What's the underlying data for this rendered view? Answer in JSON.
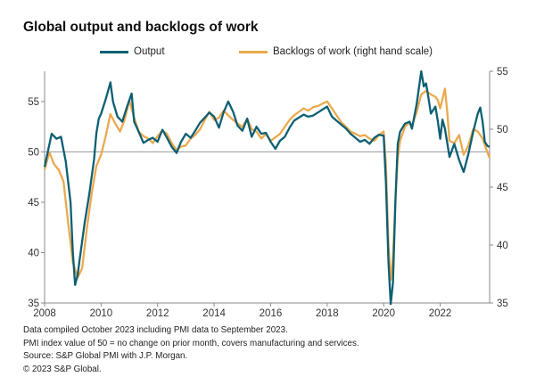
{
  "title": "Global output and backlogs of work",
  "chart_data": {
    "type": "line",
    "title": "Global output and backlogs of work",
    "x_range": [
      2008.0,
      2023.75
    ],
    "x_ticks": [
      "2008",
      "2010",
      "2012",
      "2014",
      "2016",
      "2018",
      "2020",
      "2022"
    ],
    "left_axis": {
      "ylim": [
        35,
        58
      ],
      "ticks": [
        35,
        40,
        45,
        50,
        55
      ],
      "reference_line": 50
    },
    "right_axis": {
      "ylim": [
        35,
        55
      ],
      "ticks": [
        35,
        40,
        45,
        50,
        55
      ]
    },
    "series": [
      {
        "name": "Output",
        "axis": "left",
        "color": "#0d5f73",
        "points": [
          [
            2008.0,
            48.5
          ],
          [
            2008.25,
            51.8
          ],
          [
            2008.42,
            51.3
          ],
          [
            2008.58,
            51.5
          ],
          [
            2008.75,
            49.0
          ],
          [
            2008.92,
            45.0
          ],
          [
            2009.0,
            40.0
          ],
          [
            2009.08,
            36.8
          ],
          [
            2009.17,
            37.8
          ],
          [
            2009.25,
            39.5
          ],
          [
            2009.42,
            43.0
          ],
          [
            2009.58,
            45.8
          ],
          [
            2009.75,
            49.2
          ],
          [
            2009.83,
            51.8
          ],
          [
            2009.92,
            53.3
          ],
          [
            2010.0,
            53.8
          ],
          [
            2010.17,
            55.3
          ],
          [
            2010.33,
            56.9
          ],
          [
            2010.42,
            55.0
          ],
          [
            2010.58,
            53.5
          ],
          [
            2010.75,
            53.0
          ],
          [
            2010.92,
            54.5
          ],
          [
            2011.08,
            55.8
          ],
          [
            2011.17,
            53.0
          ],
          [
            2011.33,
            52.0
          ],
          [
            2011.5,
            50.9
          ],
          [
            2011.67,
            51.2
          ],
          [
            2011.83,
            51.4
          ],
          [
            2012.0,
            51.0
          ],
          [
            2012.17,
            52.2
          ],
          [
            2012.33,
            51.4
          ],
          [
            2012.5,
            50.5
          ],
          [
            2012.67,
            49.9
          ],
          [
            2012.83,
            51.0
          ],
          [
            2013.0,
            51.8
          ],
          [
            2013.17,
            51.4
          ],
          [
            2013.33,
            52.1
          ],
          [
            2013.5,
            52.9
          ],
          [
            2013.67,
            53.4
          ],
          [
            2013.83,
            53.9
          ],
          [
            2014.0,
            53.5
          ],
          [
            2014.17,
            52.4
          ],
          [
            2014.33,
            53.9
          ],
          [
            2014.5,
            55.0
          ],
          [
            2014.67,
            54.0
          ],
          [
            2014.83,
            52.6
          ],
          [
            2015.0,
            52.1
          ],
          [
            2015.17,
            53.3
          ],
          [
            2015.33,
            51.5
          ],
          [
            2015.5,
            52.5
          ],
          [
            2015.67,
            51.8
          ],
          [
            2015.83,
            51.9
          ],
          [
            2016.0,
            51.0
          ],
          [
            2016.17,
            50.3
          ],
          [
            2016.33,
            51.1
          ],
          [
            2016.5,
            51.5
          ],
          [
            2016.67,
            52.4
          ],
          [
            2016.83,
            53.1
          ],
          [
            2017.0,
            53.4
          ],
          [
            2017.17,
            53.7
          ],
          [
            2017.33,
            53.5
          ],
          [
            2017.5,
            53.6
          ],
          [
            2017.67,
            53.9
          ],
          [
            2017.83,
            54.2
          ],
          [
            2018.0,
            54.5
          ],
          [
            2018.17,
            53.5
          ],
          [
            2018.33,
            53.1
          ],
          [
            2018.5,
            52.7
          ],
          [
            2018.67,
            52.3
          ],
          [
            2018.83,
            51.8
          ],
          [
            2019.0,
            51.4
          ],
          [
            2019.17,
            51.0
          ],
          [
            2019.33,
            51.2
          ],
          [
            2019.5,
            50.8
          ],
          [
            2019.67,
            51.4
          ],
          [
            2019.83,
            51.7
          ],
          [
            2020.0,
            51.6
          ],
          [
            2020.08,
            47.0
          ],
          [
            2020.17,
            39.0
          ],
          [
            2020.25,
            34.9
          ],
          [
            2020.33,
            37.0
          ],
          [
            2020.42,
            45.5
          ],
          [
            2020.5,
            50.8
          ],
          [
            2020.58,
            52.0
          ],
          [
            2020.75,
            52.8
          ],
          [
            2020.92,
            53.0
          ],
          [
            2021.0,
            52.3
          ],
          [
            2021.17,
            54.8
          ],
          [
            2021.33,
            58.0
          ],
          [
            2021.42,
            56.5
          ],
          [
            2021.5,
            56.8
          ],
          [
            2021.58,
            55.5
          ],
          [
            2021.67,
            53.8
          ],
          [
            2021.83,
            54.5
          ],
          [
            2021.92,
            53.0
          ],
          [
            2022.0,
            51.3
          ],
          [
            2022.08,
            53.2
          ],
          [
            2022.17,
            52.3
          ],
          [
            2022.33,
            49.5
          ],
          [
            2022.5,
            50.8
          ],
          [
            2022.67,
            49.2
          ],
          [
            2022.83,
            48.0
          ],
          [
            2023.0,
            49.8
          ],
          [
            2023.17,
            52.0
          ],
          [
            2023.33,
            53.8
          ],
          [
            2023.42,
            54.4
          ],
          [
            2023.5,
            53.0
          ],
          [
            2023.58,
            51.0
          ],
          [
            2023.67,
            50.6
          ],
          [
            2023.75,
            50.5
          ]
        ]
      },
      {
        "name": "Backlogs of work (right hand scale)",
        "axis": "right",
        "color": "#eba94e",
        "points": [
          [
            2008.0,
            46.5
          ],
          [
            2008.17,
            48.0
          ],
          [
            2008.33,
            47.0
          ],
          [
            2008.5,
            46.5
          ],
          [
            2008.67,
            45.5
          ],
          [
            2008.83,
            42.0
          ],
          [
            2009.0,
            38.5
          ],
          [
            2009.17,
            37.2
          ],
          [
            2009.33,
            38.0
          ],
          [
            2009.5,
            41.5
          ],
          [
            2009.67,
            44.5
          ],
          [
            2009.83,
            46.8
          ],
          [
            2010.0,
            47.8
          ],
          [
            2010.17,
            49.5
          ],
          [
            2010.33,
            51.3
          ],
          [
            2010.5,
            50.5
          ],
          [
            2010.67,
            49.8
          ],
          [
            2010.83,
            50.8
          ],
          [
            2011.0,
            52.5
          ],
          [
            2011.17,
            51.0
          ],
          [
            2011.33,
            49.8
          ],
          [
            2011.5,
            49.4
          ],
          [
            2011.67,
            49.2
          ],
          [
            2011.83,
            48.8
          ],
          [
            2012.0,
            49.4
          ],
          [
            2012.17,
            49.9
          ],
          [
            2012.33,
            49.6
          ],
          [
            2012.5,
            48.8
          ],
          [
            2012.67,
            48.2
          ],
          [
            2012.83,
            48.5
          ],
          [
            2013.0,
            48.6
          ],
          [
            2013.17,
            49.2
          ],
          [
            2013.33,
            49.5
          ],
          [
            2013.5,
            50.0
          ],
          [
            2013.67,
            50.8
          ],
          [
            2013.83,
            51.5
          ],
          [
            2014.0,
            50.8
          ],
          [
            2014.17,
            51.0
          ],
          [
            2014.33,
            51.6
          ],
          [
            2014.5,
            51.2
          ],
          [
            2014.67,
            50.8
          ],
          [
            2014.83,
            50.5
          ],
          [
            2015.0,
            50.2
          ],
          [
            2015.17,
            50.9
          ],
          [
            2015.33,
            50.0
          ],
          [
            2015.5,
            49.8
          ],
          [
            2015.67,
            49.2
          ],
          [
            2015.83,
            49.6
          ],
          [
            2016.0,
            49.0
          ],
          [
            2016.17,
            49.3
          ],
          [
            2016.33,
            49.6
          ],
          [
            2016.5,
            50.2
          ],
          [
            2016.67,
            50.8
          ],
          [
            2016.83,
            51.2
          ],
          [
            2017.0,
            51.5
          ],
          [
            2017.17,
            51.8
          ],
          [
            2017.33,
            51.6
          ],
          [
            2017.5,
            51.9
          ],
          [
            2017.67,
            52.0
          ],
          [
            2017.83,
            52.2
          ],
          [
            2018.0,
            52.4
          ],
          [
            2018.17,
            51.8
          ],
          [
            2018.33,
            51.2
          ],
          [
            2018.5,
            50.6
          ],
          [
            2018.67,
            50.2
          ],
          [
            2018.83,
            49.8
          ],
          [
            2019.0,
            49.6
          ],
          [
            2019.17,
            49.4
          ],
          [
            2019.33,
            49.5
          ],
          [
            2019.5,
            49.2
          ],
          [
            2019.67,
            49.0
          ],
          [
            2019.83,
            49.5
          ],
          [
            2020.0,
            49.8
          ],
          [
            2020.08,
            47.0
          ],
          [
            2020.17,
            40.0
          ],
          [
            2020.25,
            37.0
          ],
          [
            2020.33,
            39.0
          ],
          [
            2020.42,
            44.0
          ],
          [
            2020.5,
            47.5
          ],
          [
            2020.58,
            49.0
          ],
          [
            2020.75,
            50.2
          ],
          [
            2020.92,
            50.6
          ],
          [
            2021.0,
            50.3
          ],
          [
            2021.17,
            51.5
          ],
          [
            2021.33,
            53.0
          ],
          [
            2021.5,
            53.3
          ],
          [
            2021.67,
            53.0
          ],
          [
            2021.83,
            52.8
          ],
          [
            2021.92,
            52.5
          ],
          [
            2022.0,
            51.8
          ],
          [
            2022.17,
            53.5
          ],
          [
            2022.25,
            51.5
          ],
          [
            2022.33,
            49.0
          ],
          [
            2022.5,
            48.8
          ],
          [
            2022.67,
            49.5
          ],
          [
            2022.83,
            47.8
          ],
          [
            2023.0,
            48.6
          ],
          [
            2023.17,
            50.0
          ],
          [
            2023.33,
            49.8
          ],
          [
            2023.5,
            49.2
          ],
          [
            2023.67,
            48.0
          ],
          [
            2023.75,
            47.5
          ]
        ]
      }
    ]
  },
  "footer": {
    "line1": "Data compiled October 2023 including PMI data to September 2023.",
    "line2": "PMI index value of 50 = no change on prior month, covers manufacturing and services.",
    "line3": "Source: S&P Global PMI with J.P. Morgan.",
    "line4": "© 2023 S&P Global."
  }
}
